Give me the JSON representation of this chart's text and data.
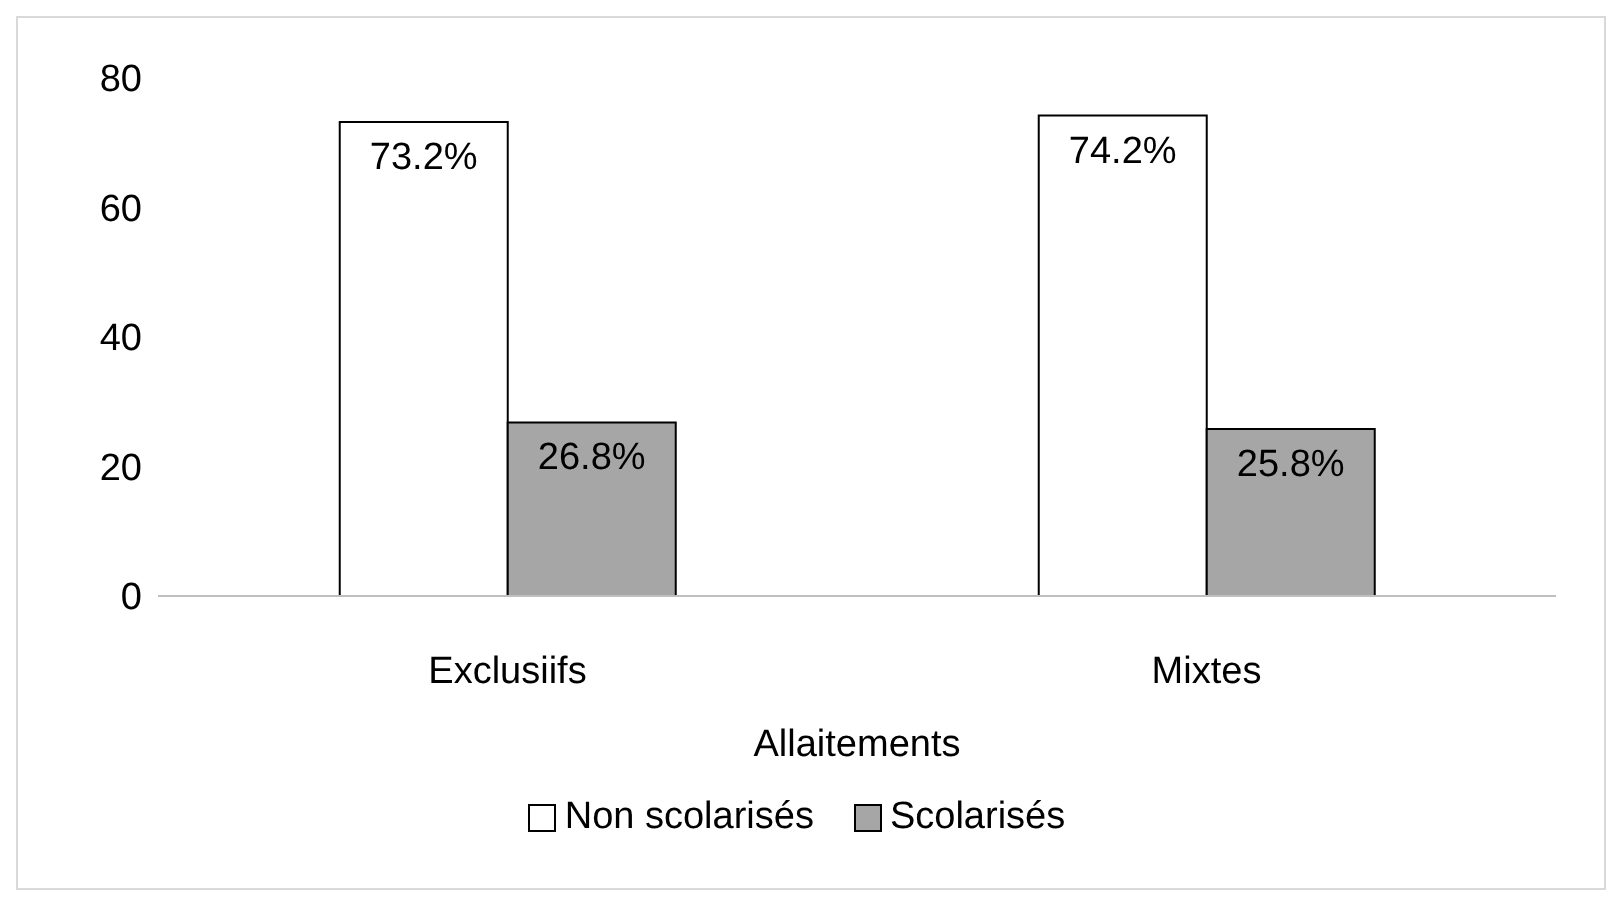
{
  "chart_data": {
    "type": "bar",
    "xlabel": "Allaitements",
    "categories": [
      "Exclusiifs",
      "Mixtes"
    ],
    "series": [
      {
        "name": "Non scolarisés",
        "color": "#ffffff",
        "values": [
          73.2,
          74.2
        ],
        "value_labels": [
          "73.2%",
          "74.2%"
        ]
      },
      {
        "name": "Scolarisés",
        "color": "#a6a6a6",
        "values": [
          26.8,
          25.8
        ],
        "value_labels": [
          "26.8%",
          "25.8%"
        ]
      }
    ],
    "ylim": [
      0,
      80
    ],
    "yticks": [
      0,
      20,
      40,
      60,
      80
    ],
    "grid": false,
    "legend": "bottom"
  }
}
